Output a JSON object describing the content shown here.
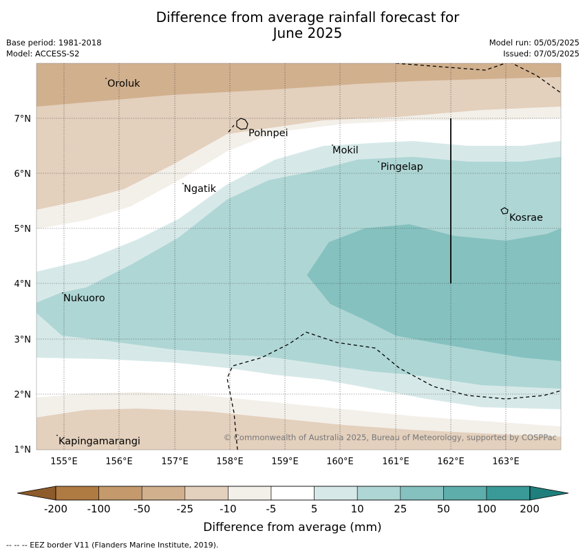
{
  "title_lines": [
    "Difference from average rainfall forecast for",
    "June 2025"
  ],
  "meta_left": [
    "Base period: 1981-2018",
    "Model: ACCESS-S2"
  ],
  "meta_right": [
    "Model run: 05/05/2025",
    "Issued: 07/05/2025"
  ],
  "lat_labels": [
    "7°N",
    "6°N",
    "5°N",
    "4°N",
    "3°N",
    "2°N",
    "1°N"
  ],
  "lon_labels": [
    "155°E",
    "156°E",
    "157°E",
    "158°E",
    "159°E",
    "160°E",
    "161°E",
    "162°E",
    "163°E"
  ],
  "places": [
    "Oroluk",
    "Pohnpei",
    "Mokil",
    "Pingelap",
    "Ngatik",
    "Kosrae",
    "Nukuoro",
    "Kapingamarangi"
  ],
  "copyright": "© Commonwealth of Australia 2025, Bureau of Meteorology, supported by COSPPac",
  "colorbar": {
    "ticks": [
      "-200",
      "-100",
      "-50",
      "-25",
      "-10",
      "-5",
      "5",
      "10",
      "25",
      "50",
      "100",
      "200"
    ],
    "colors": [
      "#b07b42",
      "#c49a6c",
      "#d1b08e",
      "#e3d0bd",
      "#f3efe9",
      "#ffffff",
      "#d6e9e8",
      "#aed6d4",
      "#84c1bf",
      "#5eaeab",
      "#3a9a98"
    ],
    "label": "Difference from average (mm)"
  },
  "footer": "-- -- -- EEZ border V11 (Flanders Marine Institute, 2019)."
}
